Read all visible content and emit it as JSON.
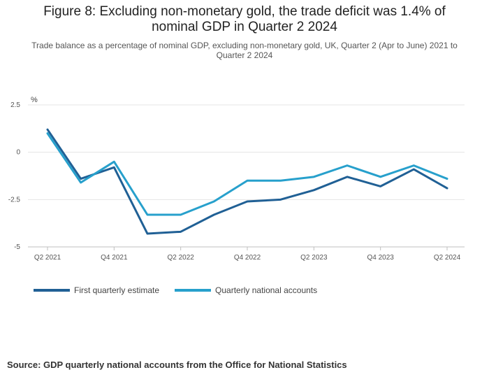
{
  "title": "Figure 8: Excluding non-monetary gold, the trade deficit was 1.4% of nominal GDP in Quarter 2 2024",
  "subtitle": "Trade balance as a percentage of nominal GDP, excluding non-monetary gold, UK, Quarter 2 (Apr to June) 2021 to Quarter 2 2024",
  "source": "Source:  GDP quarterly national accounts from the Office for National Statistics",
  "chart_data": {
    "type": "line",
    "ylabel": "%",
    "ylim": [
      -5,
      2.5
    ],
    "yticks": [
      2.5,
      0,
      -2.5,
      -5
    ],
    "ytick_labels": [
      "2.5",
      "0",
      "-2.5",
      "-5"
    ],
    "x": [
      "Q2 2021",
      "Q3 2021",
      "Q4 2021",
      "Q1 2022",
      "Q2 2022",
      "Q3 2022",
      "Q4 2022",
      "Q1 2023",
      "Q2 2023",
      "Q3 2023",
      "Q4 2023",
      "Q1 2024",
      "Q2 2024"
    ],
    "xtick_labels": [
      "Q2 2021",
      "Q4 2021",
      "Q2 2022",
      "Q4 2022",
      "Q2 2023",
      "Q4 2023",
      "Q2 2024"
    ],
    "xtick_index": [
      0,
      2,
      4,
      6,
      8,
      10,
      12
    ],
    "grid": true,
    "legend_position": "bottom-left",
    "series": [
      {
        "name": "First quarterly estimate",
        "color": "#206095",
        "values": [
          1.2,
          -1.4,
          -0.8,
          -4.3,
          -4.2,
          -3.3,
          -2.6,
          -2.5,
          -2.0,
          -1.3,
          -1.8,
          -0.9,
          -1.9
        ]
      },
      {
        "name": "Quarterly national accounts",
        "color": "#27a0cc",
        "values": [
          1.0,
          -1.6,
          -0.5,
          -3.3,
          -3.3,
          -2.6,
          -1.5,
          -1.5,
          -1.3,
          -0.7,
          -1.3,
          -0.7,
          -1.4
        ]
      }
    ]
  }
}
